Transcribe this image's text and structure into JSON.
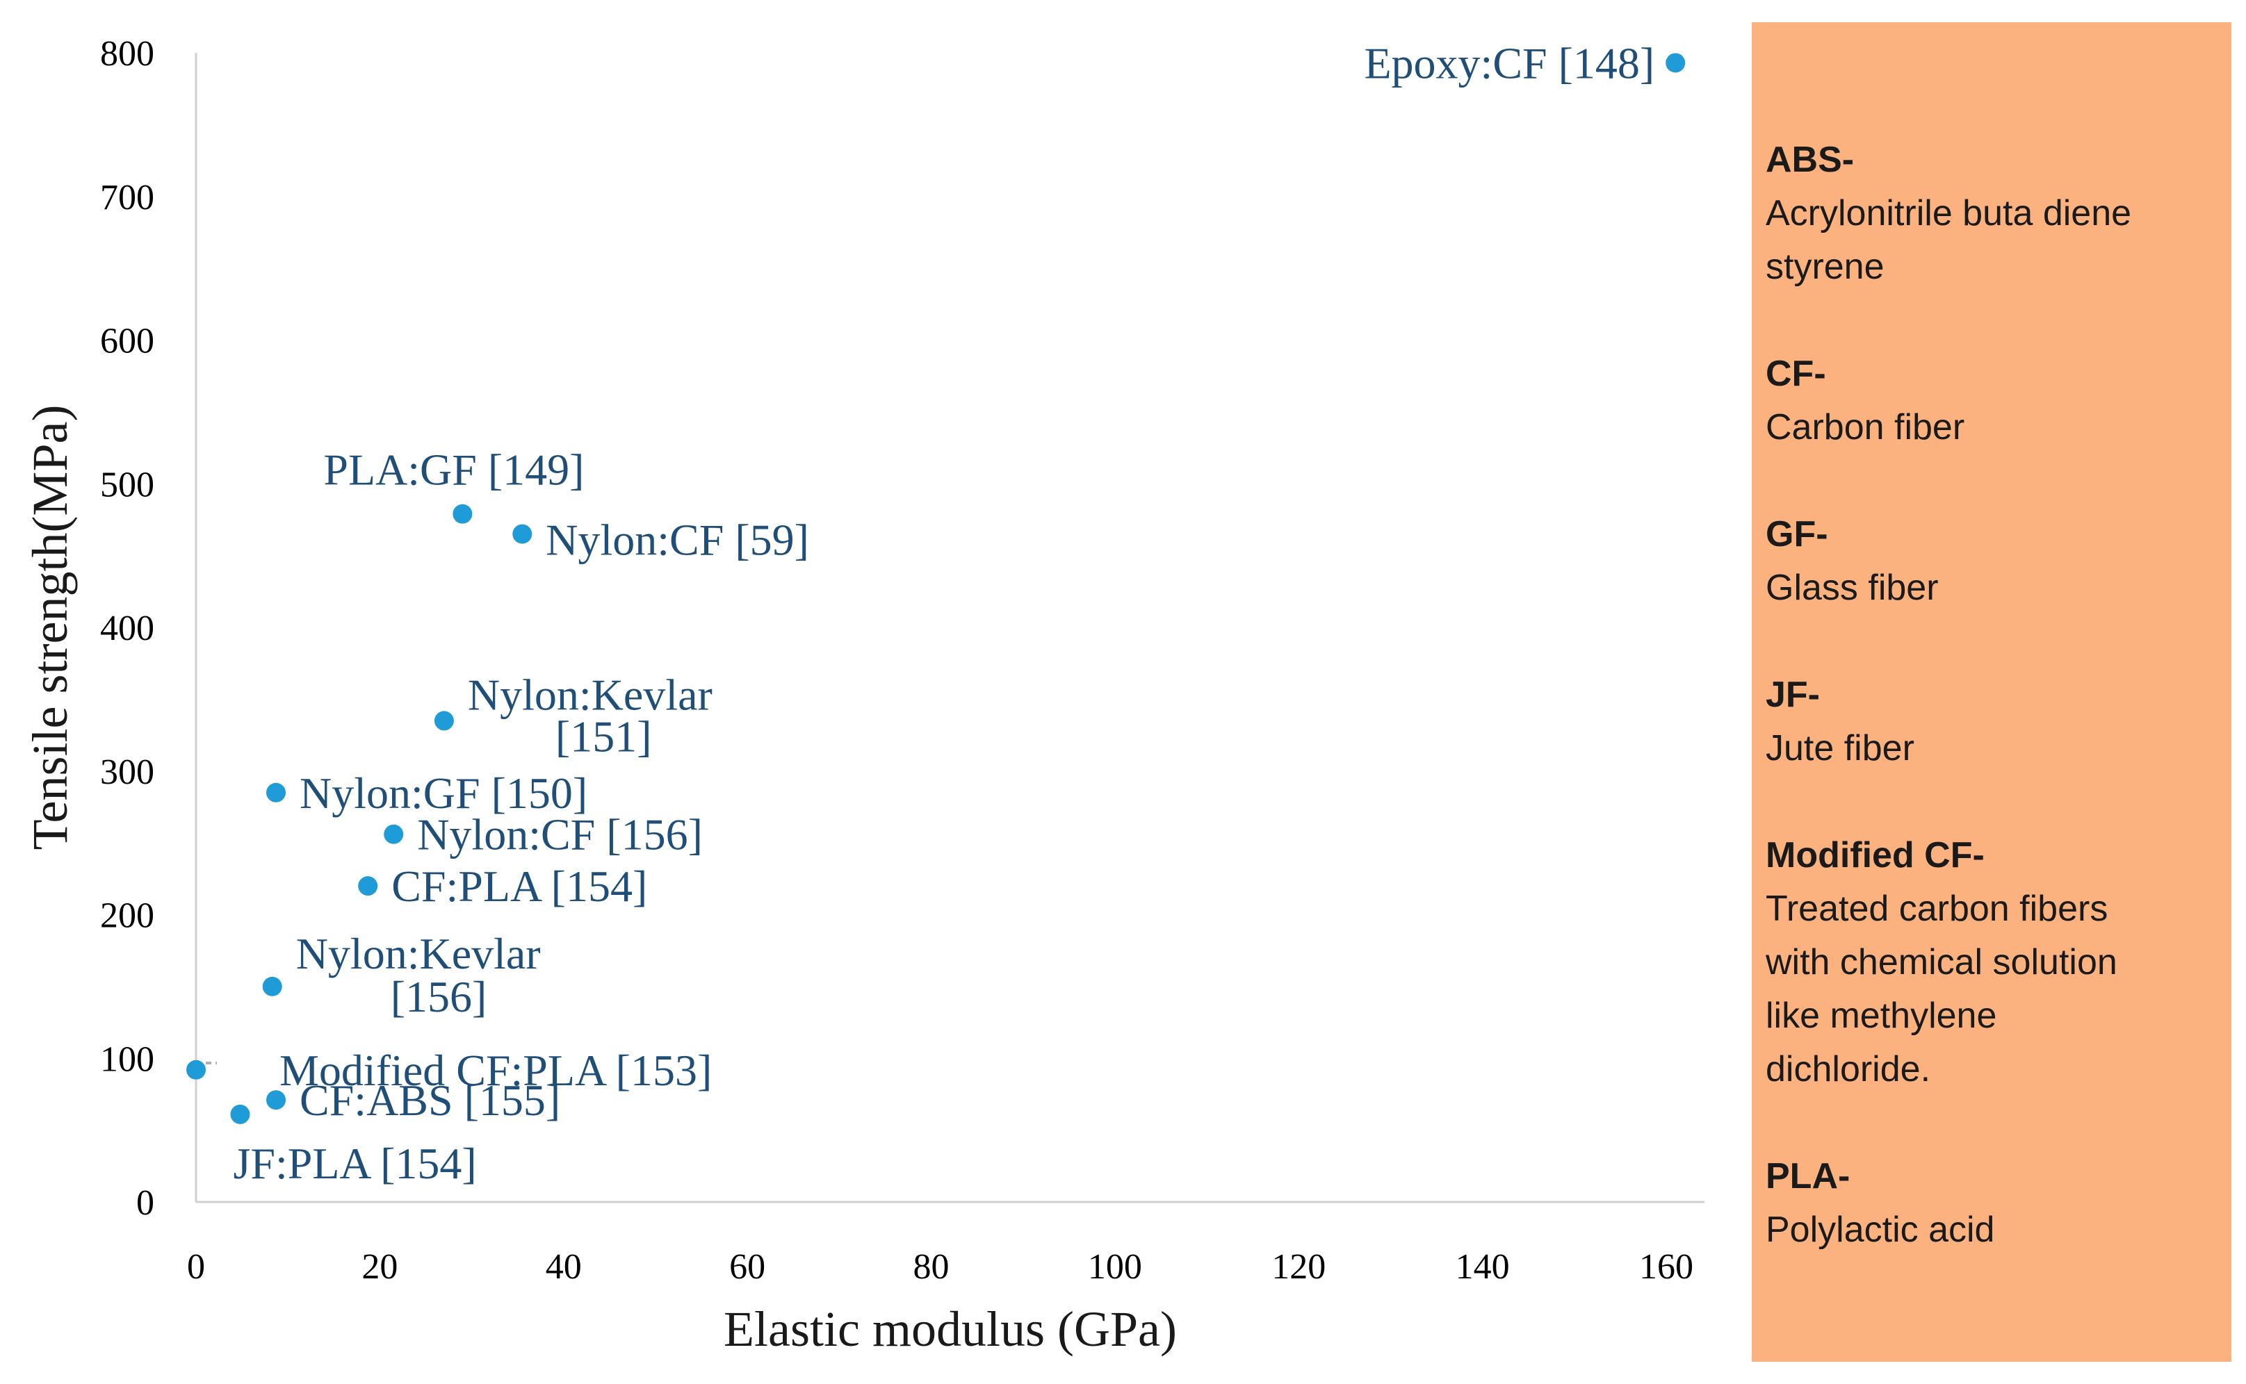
{
  "chart_data": {
    "type": "scatter",
    "title": "",
    "xlabel": "Elastic modulus (GPa)",
    "ylabel": "Tensile strength(MPa)",
    "xlim": [
      0,
      160
    ],
    "ylim": [
      0,
      800
    ],
    "xticks": [
      "0",
      "20",
      "40",
      "60",
      "80",
      "100",
      "120",
      "140",
      "160"
    ],
    "yticks": [
      "0",
      "100",
      "200",
      "300",
      "400",
      "500",
      "600",
      "700",
      "800"
    ],
    "marker_color": "#1f9bd7",
    "label_color": "#1f4e79",
    "points": [
      {
        "x": 161,
        "y": 793,
        "label": "Epoxy:CF [148]",
        "anchor": "end"
      },
      {
        "x": 29,
        "y": 479,
        "label": "PLA:GF [149]",
        "anchor": "start"
      },
      {
        "x": 35.5,
        "y": 465,
        "label": "Nylon:CF [59]",
        "anchor": "start"
      },
      {
        "x": 27,
        "y": 335,
        "label": "Nylon:Kevlar",
        "label2": "[151]",
        "anchor": "start"
      },
      {
        "x": 8.7,
        "y": 285,
        "label": "Nylon:GF [150]",
        "anchor": "start"
      },
      {
        "x": 21.5,
        "y": 256,
        "label": "Nylon:CF [156]",
        "anchor": "start"
      },
      {
        "x": 18.7,
        "y": 220,
        "label": "CF:PLA [154]",
        "anchor": "start"
      },
      {
        "x": 8.3,
        "y": 150,
        "label": "Nylon:Kevlar",
        "label2": "[156]",
        "anchor": "start"
      },
      {
        "x": 0,
        "y": 92,
        "label": "Modified CF:PLA [153]",
        "anchor": "start"
      },
      {
        "x": 8.7,
        "y": 71,
        "label": "CF:ABS [155]",
        "anchor": "start"
      },
      {
        "x": 4.8,
        "y": 61,
        "label": "JF:PLA [154]",
        "anchor": "start"
      }
    ]
  },
  "legend": {
    "background": "#fbb27e",
    "entries": [
      {
        "term": "ABS-",
        "definition": [
          "Acrylonitrile buta diene",
          "styrene"
        ]
      },
      {
        "term": "CF-",
        "definition": [
          "Carbon fiber"
        ]
      },
      {
        "term": "GF-",
        "definition": [
          "Glass fiber"
        ]
      },
      {
        "term": "JF-",
        "definition": [
          "Jute fiber"
        ]
      },
      {
        "term": "Modified CF-",
        "definition": [
          "Treated carbon fibers",
          "with chemical solution",
          "like methylene",
          "dichloride."
        ]
      },
      {
        "term": "PLA-",
        "definition": [
          "Polylactic acid"
        ]
      }
    ]
  }
}
